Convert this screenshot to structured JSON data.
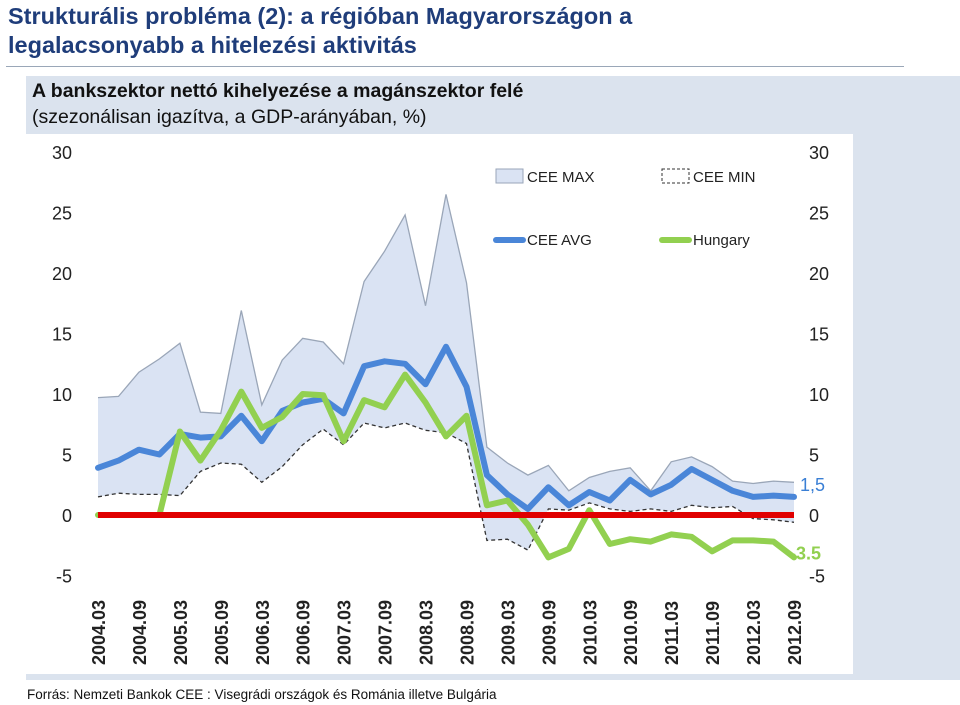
{
  "slide": {
    "title_line1": "Strukturális probléma (2): a régióban Magyarországon a",
    "title_line2": "legalacsonyabb a hitelezési aktivitás"
  },
  "source": "Forrás: Nemzeti Bankok CEE : Visegrádi országok és Románia illetve Bulgária",
  "colors": {
    "band": "#dae3f3",
    "avg": "#4a86d8",
    "hungary": "#92d050",
    "zero": "#e00000",
    "title": "#1f3d7a",
    "panel": "#dbe3ee"
  },
  "chart_data": {
    "type": "line",
    "title": "A bankszektor nettó kihelyezése a magánszektor felé",
    "subtitle": "(szezonálisan igazítva, a GDP-arányában, %)",
    "xlabel": "",
    "ylabel": "",
    "ylim": [
      -5,
      30
    ],
    "yticks": [
      30,
      25,
      20,
      15,
      10,
      5,
      0,
      -5
    ],
    "x": [
      "2004.03",
      "2004.06",
      "2004.09",
      "2004.12",
      "2005.03",
      "2005.06",
      "2005.09",
      "2005.12",
      "2006.03",
      "2006.06",
      "2006.09",
      "2006.12",
      "2007.03",
      "2007.06",
      "2007.09",
      "2007.12",
      "2008.03",
      "2008.06",
      "2008.09",
      "2008.12",
      "2009.03",
      "2009.06",
      "2009.09",
      "2009.12",
      "2010.03",
      "2010.06",
      "2010.09",
      "2010.12",
      "2011.03",
      "2011.06",
      "2011.09",
      "2011.12",
      "2012.03",
      "2012.06",
      "2012.09"
    ],
    "xticks": [
      "2004.03",
      "2004.09",
      "2005.03",
      "2005.09",
      "2006.03",
      "2006.09",
      "2007.03",
      "2007.09",
      "2008.03",
      "2008.09",
      "2009.03",
      "2009.09",
      "2010.03",
      "2010.09",
      "2011.03",
      "2011.09",
      "2012.03",
      "2012.09"
    ],
    "series": [
      {
        "name": "CEE MAX",
        "values": [
          9.7,
          9.8,
          11.8,
          12.9,
          14.2,
          8.5,
          8.4,
          16.9,
          9.1,
          12.8,
          14.6,
          14.3,
          12.5,
          19.3,
          21.8,
          24.8,
          17.3,
          26.5,
          19.2,
          5.6,
          4.3,
          3.3,
          4.1,
          2.0,
          3.1,
          3.6,
          3.9,
          2.0,
          4.4,
          4.8,
          4.0,
          2.8,
          2.6,
          2.8,
          2.7
        ]
      },
      {
        "name": "CEE MIN",
        "values": [
          1.5,
          1.8,
          1.7,
          1.7,
          1.6,
          3.6,
          4.3,
          4.2,
          2.7,
          4.0,
          5.8,
          7.1,
          5.8,
          7.6,
          7.2,
          7.6,
          7.0,
          6.8,
          5.9,
          -2.1,
          -2.0,
          -2.9,
          0.5,
          0.4,
          1.0,
          0.5,
          0.3,
          0.5,
          0.3,
          0.8,
          0.6,
          0.7,
          -0.3,
          -0.4,
          -0.6
        ]
      },
      {
        "name": "CEE AVG",
        "values": [
          3.9,
          4.5,
          5.4,
          5.0,
          6.7,
          6.4,
          6.5,
          8.2,
          6.1,
          8.6,
          9.3,
          9.6,
          8.4,
          12.3,
          12.7,
          12.5,
          10.8,
          13.9,
          10.6,
          3.3,
          1.7,
          0.5,
          2.3,
          0.8,
          1.9,
          1.2,
          2.9,
          1.7,
          2.5,
          3.8,
          2.9,
          2.0,
          1.5,
          1.6,
          1.5
        ]
      },
      {
        "name": "Hungary",
        "values": [
          0.0,
          0.0,
          0.0,
          0.0,
          6.9,
          4.5,
          7.0,
          10.2,
          7.2,
          8.1,
          10.0,
          9.9,
          6.1,
          9.5,
          8.9,
          11.6,
          9.3,
          6.5,
          8.2,
          0.8,
          1.2,
          -0.8,
          -3.5,
          -2.8,
          0.4,
          -2.4,
          -2.0,
          -2.2,
          -1.6,
          -1.8,
          -3.0,
          -2.1,
          -2.1,
          -2.2,
          -3.5
        ]
      },
      {
        "name": "",
        "values": [
          0,
          0,
          0,
          0,
          0,
          0,
          0,
          0,
          0,
          0,
          0,
          0,
          0,
          0,
          0,
          0,
          0,
          0,
          0,
          0,
          0,
          0,
          0,
          0,
          0,
          0,
          0,
          0,
          0,
          0,
          0,
          0,
          0,
          0,
          0
        ]
      }
    ],
    "end_labels": {
      "avg": "1,5",
      "hungary": "-3.5"
    },
    "legend_position": "top"
  }
}
